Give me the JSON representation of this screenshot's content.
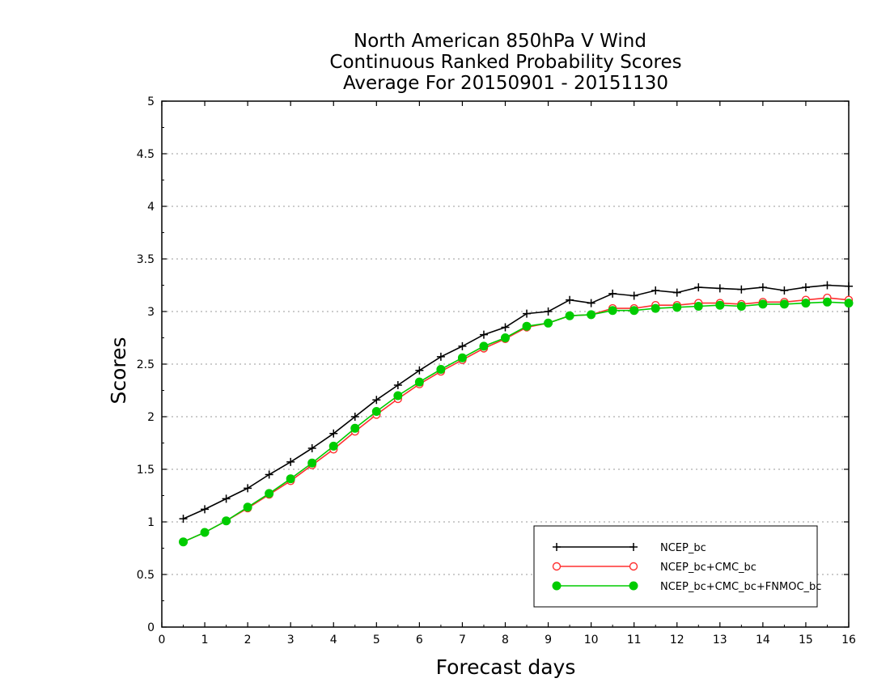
{
  "chart_data": {
    "type": "line",
    "title_lines": [
      "North American 850hPa V Wind",
      "Continuous Ranked Probability Scores",
      "Average For 20150901 - 20151130"
    ],
    "xlabel": "Forecast days",
    "ylabel": "Scores",
    "xlim": [
      0,
      16
    ],
    "ylim": [
      0,
      5
    ],
    "x_ticks": [
      0,
      1,
      2,
      3,
      4,
      5,
      6,
      7,
      8,
      9,
      10,
      11,
      12,
      13,
      14,
      15,
      16
    ],
    "x_tick_labels": [
      "0",
      "1",
      "2",
      "3",
      "4",
      "5",
      "6",
      "7",
      "8",
      "9",
      "10",
      "11",
      "12",
      "13",
      "14",
      "15",
      "16"
    ],
    "y_ticks": [
      0,
      0.5,
      1,
      1.5,
      2,
      2.5,
      3,
      3.5,
      4,
      4.5,
      5
    ],
    "y_tick_labels": [
      "0",
      "0.5",
      "1",
      "1.5",
      "2",
      "2.5",
      "3",
      "3.5",
      "4",
      "4.5",
      "5"
    ],
    "grid": "horizontal dotted",
    "legend_position": "bottom-right",
    "x": [
      0.5,
      1,
      1.5,
      2,
      2.5,
      3,
      3.5,
      4,
      4.5,
      5,
      5.5,
      6,
      6.5,
      7,
      7.5,
      8,
      8.5,
      9,
      9.5,
      10,
      10.5,
      11,
      11.5,
      12,
      12.5,
      13,
      13.5,
      14,
      14.5,
      15,
      15.5,
      16
    ],
    "series": [
      {
        "name": "NCEP_bc",
        "color": "#000000",
        "marker": "plus",
        "values": [
          1.03,
          1.12,
          1.22,
          1.32,
          1.45,
          1.57,
          1.7,
          1.84,
          2.0,
          2.16,
          2.3,
          2.44,
          2.57,
          2.67,
          2.78,
          2.85,
          2.98,
          3.0,
          3.11,
          3.08,
          3.17,
          3.15,
          3.2,
          3.18,
          3.23,
          3.22,
          3.21,
          3.23,
          3.2,
          3.23,
          3.25,
          3.24
        ]
      },
      {
        "name": "NCEP_bc+CMC_bc",
        "color": "#ff3030",
        "marker": "open-circle",
        "values": [
          0.81,
          0.9,
          1.01,
          1.13,
          1.26,
          1.39,
          1.54,
          1.69,
          1.86,
          2.02,
          2.17,
          2.31,
          2.43,
          2.54,
          2.65,
          2.74,
          2.85,
          2.89,
          2.96,
          2.97,
          3.03,
          3.03,
          3.06,
          3.06,
          3.08,
          3.08,
          3.07,
          3.09,
          3.09,
          3.11,
          3.13,
          3.11
        ]
      },
      {
        "name": "NCEP_bc+CMC_bc+FNMOC_bc",
        "color": "#00cc00",
        "marker": "filled-circle",
        "values": [
          0.81,
          0.9,
          1.01,
          1.14,
          1.27,
          1.41,
          1.56,
          1.72,
          1.89,
          2.05,
          2.2,
          2.33,
          2.45,
          2.56,
          2.67,
          2.75,
          2.86,
          2.89,
          2.96,
          2.97,
          3.01,
          3.01,
          3.03,
          3.04,
          3.05,
          3.06,
          3.05,
          3.07,
          3.07,
          3.08,
          3.09,
          3.08
        ]
      }
    ]
  }
}
